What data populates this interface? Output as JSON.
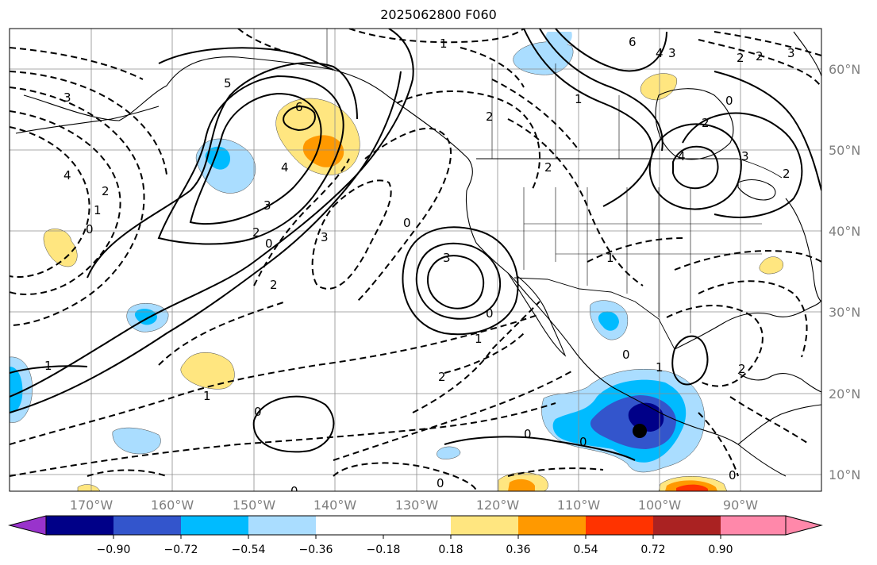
{
  "title": "2025062800 F060",
  "lat_labels": [
    "60°N",
    "50°N",
    "40°N",
    "30°N",
    "20°N",
    "10°N"
  ],
  "lon_labels": [
    "170°W",
    "160°W",
    "150°W",
    "140°W",
    "130°W",
    "120°W",
    "110°W",
    "100°W",
    "90°W"
  ],
  "colorbar": {
    "ticks": [
      "−0.90",
      "−0.72",
      "−0.54",
      "−0.36",
      "−0.18",
      "0.18",
      "0.36",
      "0.54",
      "0.72",
      "0.90"
    ],
    "colors": [
      "#9933cc",
      "#000088",
      "#3355cc",
      "#00bbff",
      "#aaddff",
      "#ffffff",
      "#ffe680",
      "#ff9900",
      "#ff3300",
      "#aa2222",
      "#ff88aa"
    ]
  },
  "contour_labels": [
    "3",
    "4",
    "2",
    "1",
    "0",
    "6",
    "5",
    "4",
    "3",
    "2",
    "0",
    "3",
    "0",
    "2",
    "1",
    "1",
    "2",
    "3",
    "0",
    "1",
    "2",
    "0",
    "0",
    "0",
    "0",
    "6",
    "4",
    "3",
    "1",
    "2",
    "4",
    "3",
    "2",
    "0",
    "2",
    "3",
    "2",
    "1",
    "2",
    "1",
    "0",
    "2",
    "0",
    "0",
    "1"
  ],
  "map_colors": {
    "land_edge": "#000000",
    "grid": "#8c8c8c",
    "neg_light": "#aaddff",
    "neg_mid": "#00bbff",
    "neg_strong": "#3355cc",
    "neg_deep": "#000088",
    "pos_light": "#ffe680",
    "pos_mid": "#ff9900",
    "pos_strong": "#ff3300"
  }
}
